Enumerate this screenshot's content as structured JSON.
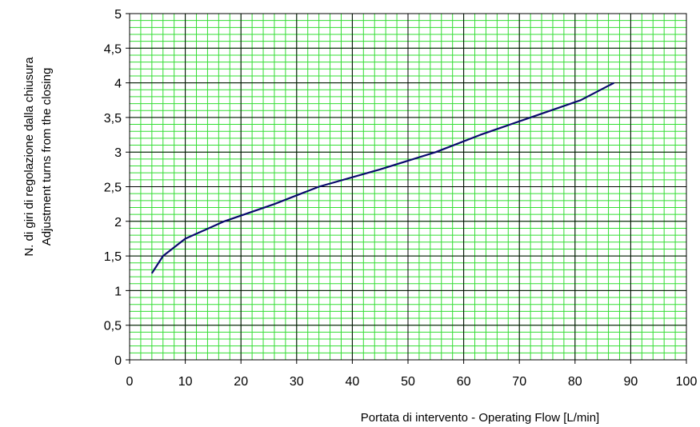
{
  "chart_data": {
    "type": "line",
    "title": "",
    "xlabel": "Portata di intervento - Operating Flow  [L/min]",
    "ylabel_lines": [
      "N. di giri di regolazione dalla chiusura",
      "Adjustment turns from the closing"
    ],
    "xlim": [
      0,
      100
    ],
    "ylim": [
      0,
      5
    ],
    "x_ticks": [
      0,
      10,
      20,
      30,
      40,
      50,
      60,
      70,
      80,
      90,
      100
    ],
    "x_tick_labels": [
      "0",
      "10",
      "20",
      "30",
      "40",
      "50",
      "60",
      "70",
      "80",
      "90",
      "100"
    ],
    "y_ticks": [
      0,
      0.5,
      1,
      1.5,
      2,
      2.5,
      3,
      3.5,
      4,
      4.5,
      5
    ],
    "y_tick_labels": [
      "0",
      "0,5",
      "1",
      "1,5",
      "2",
      "2,5",
      "3",
      "3,5",
      "4",
      "4,5",
      "5"
    ],
    "grid": true,
    "minor_grid": {
      "x_step": 2,
      "y_step": 0.1,
      "color": "#33dd33"
    },
    "major_grid_color": "#000000",
    "series": [
      {
        "color": "#0a0a6e",
        "x": [
          4,
          6,
          10,
          17,
          26,
          34,
          45,
          55,
          63,
          72,
          81,
          87
        ],
        "y": [
          1.25,
          1.5,
          1.75,
          2.0,
          2.25,
          2.5,
          2.75,
          3.0,
          3.25,
          3.5,
          3.75,
          4.0
        ]
      }
    ]
  }
}
